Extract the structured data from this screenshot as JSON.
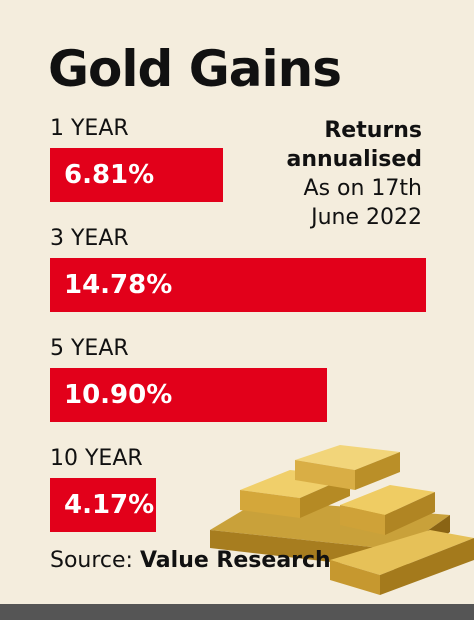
{
  "chart_data": {
    "type": "bar",
    "orientation": "horizontal",
    "title": "Gold Gains",
    "categories": [
      "1 YEAR",
      "3 YEAR",
      "5 YEAR",
      "10 YEAR"
    ],
    "values": [
      6.81,
      14.78,
      10.9,
      4.17
    ],
    "value_labels": [
      "6.81%",
      "14.78%",
      "10.90%",
      "4.17%"
    ],
    "color": "#e2001a",
    "note_title": "Returns annualised",
    "note": "As on 17th June 2022",
    "source_label": "Source:",
    "source": "Value Research"
  }
}
